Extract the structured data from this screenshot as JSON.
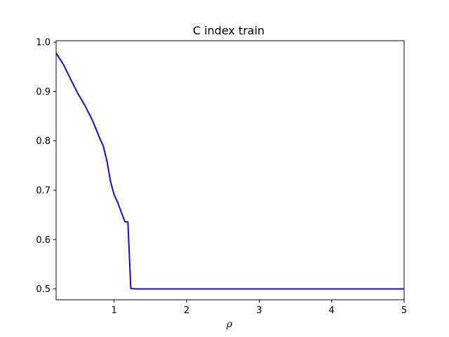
{
  "chart_data": {
    "type": "line",
    "title": "C index train",
    "xlabel": "ρ",
    "ylabel": "",
    "xlim": [
      0.2,
      5
    ],
    "ylim": [
      0.478,
      1.003
    ],
    "xticks": [
      1,
      2,
      3,
      4,
      5
    ],
    "xtick_labels": [
      "1",
      "2",
      "3",
      "4",
      "5"
    ],
    "yticks": [
      0.5,
      0.6,
      0.7,
      0.8,
      0.9,
      1.0
    ],
    "ytick_labels": [
      "0.5",
      "0.6",
      "0.7",
      "0.8",
      "0.9",
      "1.0"
    ],
    "grid": false,
    "legend": "none",
    "line_color": "#2a00c8",
    "series": [
      {
        "x": [
          0.2,
          0.3,
          0.4,
          0.5,
          0.6,
          0.7,
          0.75,
          0.8,
          0.85,
          0.9,
          0.95,
          1.0,
          1.05,
          1.1,
          1.15,
          1.19,
          1.23,
          1.3,
          1.5,
          2.0,
          3.0,
          4.0,
          5.0
        ],
        "y": [
          0.978,
          0.955,
          0.925,
          0.896,
          0.871,
          0.842,
          0.824,
          0.806,
          0.79,
          0.76,
          0.718,
          0.691,
          0.675,
          0.655,
          0.636,
          0.636,
          0.501,
          0.5,
          0.5,
          0.5,
          0.5,
          0.5,
          0.5
        ]
      }
    ]
  }
}
